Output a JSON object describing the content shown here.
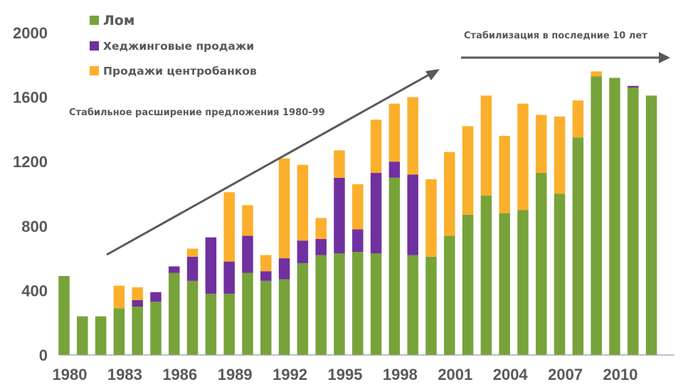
{
  "chart_data": {
    "type": "bar",
    "stacked": true,
    "title": "",
    "xlabel": "",
    "ylabel": "",
    "ylim": [
      0,
      2000
    ],
    "yticks": [
      0,
      400,
      800,
      1200,
      1600,
      2000
    ],
    "grid": false,
    "legend_position": "top-left",
    "categories": [
      1980,
      1981,
      1982,
      1983,
      1984,
      1985,
      1986,
      1987,
      1988,
      1989,
      1990,
      1991,
      1992,
      1993,
      1994,
      1995,
      1996,
      1997,
      1998,
      1999,
      2000,
      2001,
      2002,
      2003,
      2004,
      2005,
      2006,
      2007,
      2008,
      2009,
      2010,
      2011,
      2012
    ],
    "xtick_labels": [
      "1980",
      "1983",
      "1986",
      "1989",
      "1992",
      "1995",
      "1998",
      "2001",
      "2004",
      "2007",
      "2010"
    ],
    "series": [
      {
        "name": "Лом",
        "color": "#77A33A",
        "values": [
          490,
          240,
          240,
          290,
          300,
          330,
          510,
          460,
          380,
          380,
          510,
          460,
          470,
          570,
          620,
          630,
          640,
          630,
          1100,
          620,
          610,
          740,
          870,
          990,
          880,
          900,
          1130,
          1000,
          1350,
          1730,
          1720,
          1660,
          1610
        ]
      },
      {
        "name": "Хеджинговые продажи",
        "color": "#7030A0",
        "values": [
          0,
          0,
          0,
          0,
          40,
          60,
          40,
          150,
          350,
          200,
          230,
          60,
          130,
          140,
          100,
          470,
          140,
          500,
          100,
          500,
          0,
          0,
          0,
          0,
          0,
          0,
          0,
          0,
          0,
          0,
          0,
          10,
          0
        ]
      },
      {
        "name": "Продажи центробанков",
        "color": "#FBAF2C",
        "values": [
          0,
          0,
          0,
          140,
          80,
          0,
          0,
          50,
          0,
          430,
          190,
          100,
          620,
          470,
          130,
          170,
          280,
          330,
          360,
          480,
          480,
          520,
          550,
          620,
          480,
          660,
          360,
          480,
          230,
          30,
          0,
          0,
          0
        ]
      }
    ],
    "annotations": [
      {
        "id": "growth",
        "text": "Стабильное расширение предложения 1980-99"
      },
      {
        "id": "stable",
        "text": "Стабилизация в последние 10 лет"
      }
    ]
  }
}
